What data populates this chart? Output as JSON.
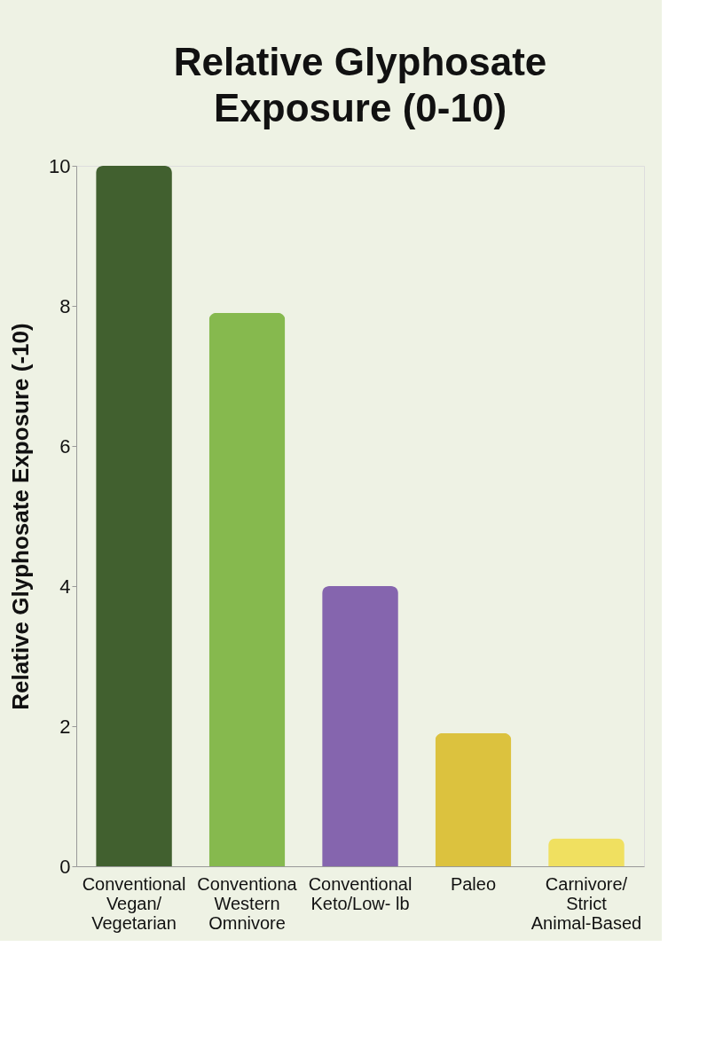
{
  "chart_data": {
    "type": "bar",
    "title": "Relative Glyphosate\nExposure (0-10)",
    "ylabel": "Relative Glyphosate Exposure (-10)",
    "categories": [
      "Conventional\nVegan/\nVegetarian",
      "Conventiona\nWestern\nOmnivore",
      "Conventional\nKeto/Low- lb",
      "Paleo",
      "Carnivore/\nStrict\nAnimal-Based"
    ],
    "values": [
      10,
      7.9,
      4.0,
      1.9,
      0.4
    ],
    "colors": [
      "#41602f",
      "#86b94e",
      "#8565ae",
      "#dcc23e",
      "#f0e060"
    ],
    "ylim": [
      0,
      10
    ],
    "yticks": [
      0,
      2,
      4,
      6,
      8,
      10
    ],
    "grid": false
  }
}
